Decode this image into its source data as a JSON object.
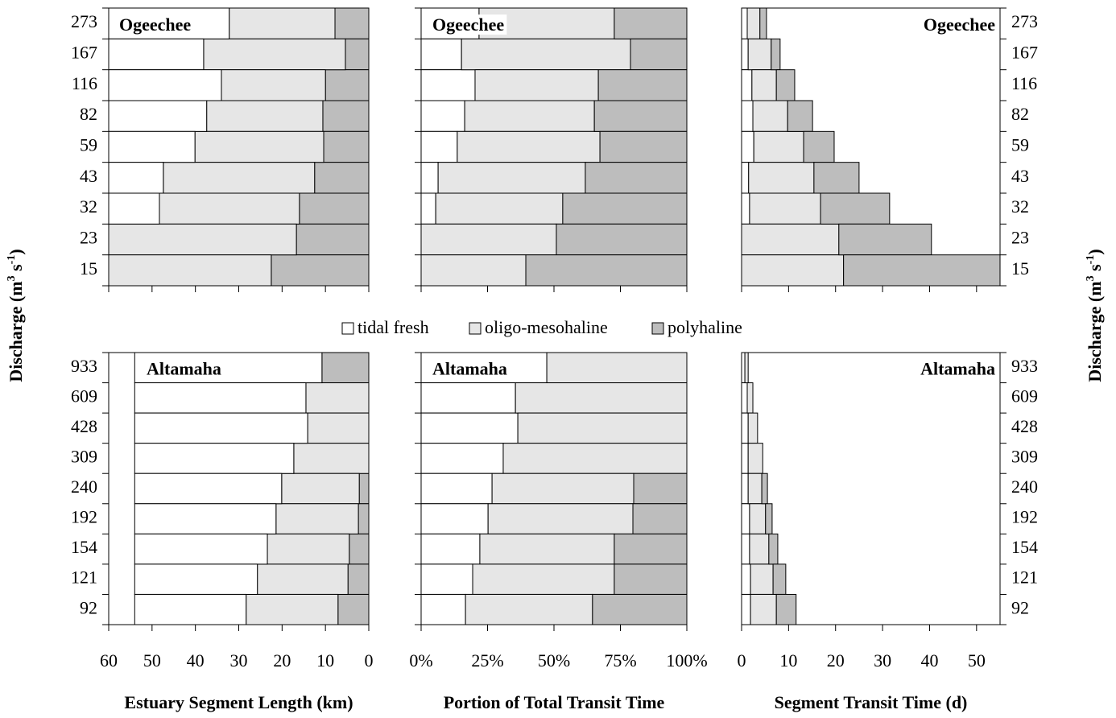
{
  "chart_data": [
    {
      "type": "bar",
      "orientation": "horizontal",
      "stacked": true,
      "title": "Ogeechee",
      "categories": [
        "273",
        "167",
        "116",
        "82",
        "59",
        "43",
        "32",
        "23",
        "15"
      ],
      "y_label": [
        "Discharge (m",
        "3",
        " s",
        "-1",
        ")"
      ],
      "series": [
        {
          "name": "polyhaline",
          "color": "#bdbdbd",
          "values": [
            7.8,
            5.4,
            10.0,
            10.6,
            10.4,
            12.5,
            16.0,
            16.7,
            22.5
          ]
        },
        {
          "name": "oligo-mesohaline",
          "color": "#e6e6e6",
          "values": [
            24.4,
            32.7,
            24.0,
            26.8,
            29.7,
            34.9,
            32.3,
            43.3,
            37.5
          ]
        },
        {
          "name": "tidal fresh",
          "color": "#ffffff",
          "values": [
            27.8,
            21.9,
            26.0,
            22.6,
            19.9,
            12.6,
            11.7,
            0,
            0
          ]
        }
      ],
      "xlim": [
        60,
        0
      ],
      "xticks": [
        60,
        50,
        40,
        30,
        20,
        10,
        0
      ],
      "show_tick_labels": false
    },
    {
      "type": "bar",
      "orientation": "horizontal",
      "stacked": true,
      "title": "Ogeechee",
      "series": [
        {
          "name": "tidal fresh",
          "color": "#ffffff",
          "values": [
            21.8,
            15.2,
            20.3,
            16.4,
            13.6,
            6.4,
            5.5,
            0,
            0
          ]
        },
        {
          "name": "oligo-mesohaline",
          "color": "#e6e6e6",
          "values": [
            50.9,
            63.6,
            46.4,
            48.8,
            53.7,
            55.4,
            47.8,
            50.9,
            39.4
          ]
        },
        {
          "name": "polyhaline",
          "color": "#bdbdbd",
          "values": [
            27.3,
            21.2,
            33.3,
            34.8,
            32.7,
            38.2,
            46.7,
            49.1,
            60.6
          ]
        }
      ],
      "xlim": [
        0,
        100
      ],
      "xticks": [
        0,
        25,
        50,
        75,
        100
      ],
      "show_tick_labels": false
    },
    {
      "type": "bar",
      "orientation": "horizontal",
      "stacked": true,
      "title": "Ogeechee",
      "categories": [
        "273",
        "167",
        "116",
        "82",
        "59",
        "43",
        "32",
        "23",
        "15"
      ],
      "y_label": [
        "Discharge (m",
        "3",
        " s",
        "-1",
        ")"
      ],
      "series": [
        {
          "name": "tidal fresh",
          "color": "#ffffff",
          "values": [
            1.2,
            1.4,
            2.2,
            2.4,
            2.6,
            1.5,
            1.7,
            0,
            0
          ]
        },
        {
          "name": "oligo-mesohaline",
          "color": "#e6e6e6",
          "values": [
            2.7,
            4.9,
            5.2,
            7.4,
            10.6,
            13.9,
            15.1,
            20.7,
            21.7
          ]
        },
        {
          "name": "polyhaline",
          "color": "#bdbdbd",
          "values": [
            1.4,
            1.9,
            3.9,
            5.3,
            6.5,
            9.6,
            14.7,
            19.7,
            33.3
          ]
        }
      ],
      "xlim": [
        0,
        55
      ],
      "xticks": [
        0,
        10,
        20,
        30,
        40,
        50
      ],
      "show_tick_labels": false
    },
    {
      "type": "bar",
      "orientation": "horizontal",
      "stacked": true,
      "title": "Altamaha",
      "categories": [
        "933",
        "609",
        "428",
        "309",
        "240",
        "192",
        "154",
        "121",
        "92"
      ],
      "series": [
        {
          "name": "polyhaline",
          "color": "#bdbdbd",
          "values": [
            10.8,
            0,
            0,
            0,
            2.2,
            2.4,
            4.5,
            4.8,
            7.1
          ]
        },
        {
          "name": "oligo-mesohaline",
          "color": "#e6e6e6",
          "values": [
            0,
            14.5,
            14.1,
            17.3,
            17.9,
            19.0,
            18.9,
            20.9,
            21.2
          ]
        },
        {
          "name": "tidal fresh",
          "color": "#ffffff",
          "values": [
            43.2,
            39.5,
            39.9,
            36.7,
            33.9,
            32.6,
            30.6,
            28.3,
            25.7
          ]
        }
      ],
      "xlim": [
        60,
        0
      ],
      "xticks": [
        60,
        50,
        40,
        30,
        20,
        10,
        0
      ],
      "show_tick_labels": true,
      "xlabel": "Estuary Segment Length (km)"
    },
    {
      "type": "bar",
      "orientation": "horizontal",
      "stacked": true,
      "title": "Altamaha",
      "series": [
        {
          "name": "tidal fresh",
          "color": "#ffffff",
          "values": [
            47.3,
            35.5,
            36.4,
            30.9,
            26.7,
            25.2,
            22.1,
            19.4,
            16.7
          ]
        },
        {
          "name": "oligo-mesohaline",
          "color": "#e6e6e6",
          "values": [
            52.7,
            64.5,
            63.6,
            69.1,
            53.3,
            54.5,
            50.6,
            53.3,
            47.8
          ]
        },
        {
          "name": "polyhaline",
          "color": "#bdbdbd",
          "values": [
            0,
            0,
            0,
            0,
            20.0,
            20.3,
            27.3,
            27.3,
            35.5
          ]
        }
      ],
      "xlim": [
        0,
        100
      ],
      "xticks": [
        {
          "value": 0,
          "label": "0%"
        },
        {
          "value": 25,
          "label": "25%"
        },
        {
          "value": 50,
          "label": "50%"
        },
        {
          "value": 75,
          "label": "75%"
        },
        {
          "value": 100,
          "label": "100%"
        }
      ],
      "show_tick_labels": true,
      "xlabel": "Portion of Total Transit Time"
    },
    {
      "type": "bar",
      "orientation": "horizontal",
      "stacked": true,
      "title": "Altamaha",
      "categories": [
        "933",
        "609",
        "428",
        "309",
        "240",
        "192",
        "154",
        "121",
        "92"
      ],
      "series": [
        {
          "name": "tidal fresh",
          "color": "#ffffff",
          "values": [
            0.7,
            1.2,
            1.4,
            1.4,
            1.4,
            1.7,
            1.7,
            1.9,
            1.9
          ]
        },
        {
          "name": "oligo-mesohaline",
          "color": "#e6e6e6",
          "values": [
            0.7,
            1.2,
            2.0,
            3.1,
            2.9,
            3.4,
            4.1,
            4.8,
            5.5
          ]
        },
        {
          "name": "polyhaline",
          "color": "#bdbdbd",
          "values": [
            0,
            0,
            0,
            0,
            1.2,
            1.4,
            1.9,
            2.7,
            4.2
          ]
        }
      ],
      "xlim": [
        0,
        55
      ],
      "xticks": [
        0,
        10,
        20,
        30,
        40,
        50
      ],
      "show_tick_labels": true,
      "xlabel": "Segment Transit Time (d)"
    }
  ]
}
